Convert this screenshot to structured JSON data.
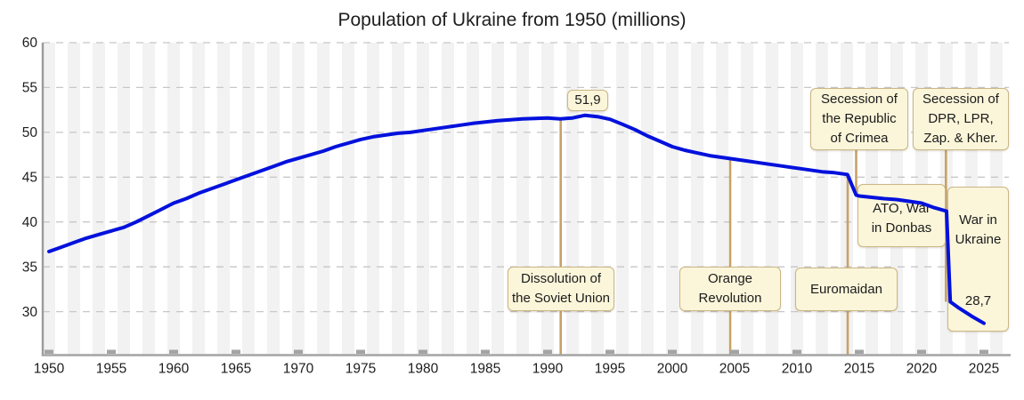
{
  "title": "Population of Ukraine from 1950 (millions)",
  "annotations": {
    "peak_label": "51,9",
    "end_label": "28,7",
    "dissolution": {
      "lines": [
        "Dissolution of",
        "the Soviet Union"
      ]
    },
    "orange": {
      "lines": [
        "Orange",
        "Revolution"
      ]
    },
    "euromaidan": {
      "lines": [
        "Euromaidan"
      ]
    },
    "crimea": {
      "lines": [
        "Secession of",
        "the Republic",
        "of Crimea"
      ]
    },
    "dpr": {
      "lines": [
        "Secession of",
        "DPR, LPR,",
        "Zap. & Kher."
      ]
    },
    "ato": {
      "lines": [
        "ATO, War",
        "in Donbas"
      ]
    },
    "war": {
      "lines": [
        "War in",
        "Ukraine"
      ]
    }
  },
  "chart_data": {
    "type": "line",
    "title": "Population of Ukraine from 1950 (millions)",
    "xlabel": "",
    "ylabel": "",
    "x_range": [
      1949.5,
      2027.0
    ],
    "y_range": [
      25.2,
      60
    ],
    "x_ticks": [
      1950,
      1955,
      1960,
      1965,
      1970,
      1975,
      1980,
      1985,
      1990,
      1995,
      2000,
      2005,
      2010,
      2015,
      2020,
      2025
    ],
    "y_ticks": [
      60,
      55,
      50,
      45,
      40,
      35,
      30
    ],
    "grid": "horizontal-dashed",
    "legend_position": "none",
    "colors": {
      "line": "#0211dc",
      "event_line": "#c7a267",
      "stripe": "#f2f2f2",
      "gridline": "#c7c7c7",
      "axis": "#a4a4a4",
      "tick_label": "#1d1d1d"
    },
    "stripes": {
      "start_year": 1950,
      "end_year": 2026,
      "step": 2,
      "width_years": 1
    },
    "events": [
      {
        "label": "Dissolution of the Soviet Union",
        "year": 1991.05,
        "from": 51.5,
        "to": 25.2
      },
      {
        "label": "Orange Revolution",
        "year": 2004.64,
        "from": 47.05,
        "to": 25.2
      },
      {
        "label": "Euromaidan",
        "year": 2014.07,
        "from": 45.3,
        "to": 25.2
      },
      {
        "label": "Secession of the Republic of Crimea",
        "year": 2014.75,
        "from": 48.1,
        "to": 43.0
      },
      {
        "label": "Secession of DPR, LPR, Zap. & Kher.",
        "year": 2021.95,
        "from": 48.1,
        "to": 31.1
      }
    ],
    "series": [
      {
        "name": "Population of Ukraine (millions)",
        "color": "#0211dc",
        "points": [
          [
            1950,
            36.7
          ],
          [
            1951,
            37.2
          ],
          [
            1952,
            37.7
          ],
          [
            1953,
            38.2
          ],
          [
            1954,
            38.6
          ],
          [
            1955,
            39.0
          ],
          [
            1956,
            39.4
          ],
          [
            1957,
            40.0
          ],
          [
            1958,
            40.7
          ],
          [
            1959,
            41.4
          ],
          [
            1960,
            42.1
          ],
          [
            1961,
            42.6
          ],
          [
            1962,
            43.2
          ],
          [
            1963,
            43.7
          ],
          [
            1964,
            44.2
          ],
          [
            1965,
            44.7
          ],
          [
            1966,
            45.2
          ],
          [
            1967,
            45.7
          ],
          [
            1968,
            46.2
          ],
          [
            1969,
            46.7
          ],
          [
            1970,
            47.1
          ],
          [
            1971,
            47.5
          ],
          [
            1972,
            47.9
          ],
          [
            1973,
            48.4
          ],
          [
            1974,
            48.8
          ],
          [
            1975,
            49.2
          ],
          [
            1976,
            49.5
          ],
          [
            1977,
            49.7
          ],
          [
            1978,
            49.9
          ],
          [
            1979,
            50.0
          ],
          [
            1980,
            50.2
          ],
          [
            1981,
            50.4
          ],
          [
            1982,
            50.6
          ],
          [
            1983,
            50.8
          ],
          [
            1984,
            51.0
          ],
          [
            1985,
            51.15
          ],
          [
            1986,
            51.3
          ],
          [
            1987,
            51.4
          ],
          [
            1988,
            51.5
          ],
          [
            1989,
            51.55
          ],
          [
            1990,
            51.6
          ],
          [
            1991,
            51.5
          ],
          [
            1992,
            51.6
          ],
          [
            1993,
            51.9
          ],
          [
            1994,
            51.75
          ],
          [
            1995,
            51.45
          ],
          [
            1996,
            50.9
          ],
          [
            1997,
            50.3
          ],
          [
            1998,
            49.6
          ],
          [
            1999,
            49.0
          ],
          [
            2000,
            48.4
          ],
          [
            2001,
            48.0
          ],
          [
            2002,
            47.7
          ],
          [
            2003,
            47.4
          ],
          [
            2004,
            47.2
          ],
          [
            2005,
            47.0
          ],
          [
            2006,
            46.8
          ],
          [
            2007,
            46.6
          ],
          [
            2008,
            46.4
          ],
          [
            2009,
            46.2
          ],
          [
            2010,
            46.0
          ],
          [
            2011,
            45.8
          ],
          [
            2012,
            45.6
          ],
          [
            2013,
            45.5
          ],
          [
            2014.05,
            45.3
          ],
          [
            2014.75,
            43.0
          ],
          [
            2015,
            42.9
          ],
          [
            2016,
            42.75
          ],
          [
            2017,
            42.6
          ],
          [
            2018,
            42.5
          ],
          [
            2019,
            42.3
          ],
          [
            2020,
            42.1
          ],
          [
            2021,
            41.6
          ],
          [
            2022,
            41.2
          ],
          [
            2022.3,
            31.1
          ],
          [
            2023,
            30.4
          ],
          [
            2024,
            29.5
          ],
          [
            2025,
            28.7
          ]
        ]
      }
    ],
    "point_labels": [
      {
        "text": "51,9",
        "year": 1993,
        "value": 51.9
      },
      {
        "text": "28,7",
        "year": 2025,
        "value": 28.7
      }
    ]
  }
}
